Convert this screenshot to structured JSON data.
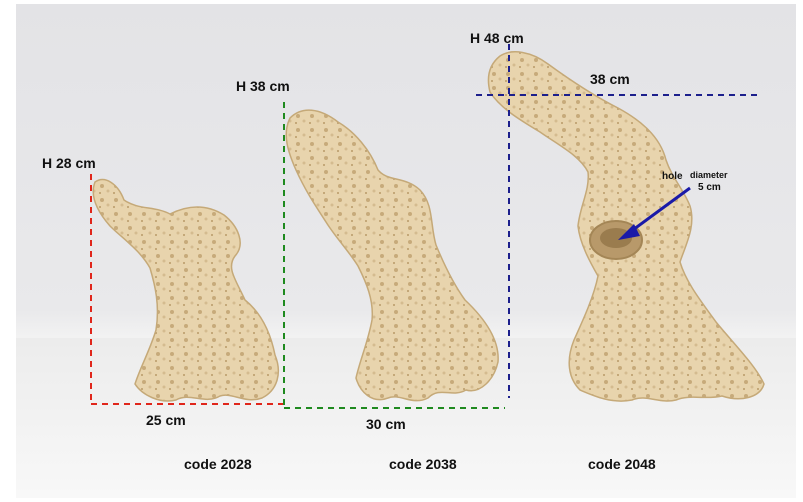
{
  "rocks": [
    {
      "height_label": "H 28 cm",
      "width_label": "25 cm",
      "code_label": "code 2028",
      "guide_color": "#e0261b"
    },
    {
      "height_label": "H 38 cm",
      "width_label": "30 cm",
      "code_label": "code 2038",
      "guide_color": "#1f8a1f"
    },
    {
      "height_label": "H 48 cm",
      "width_label": "38 cm",
      "code_label": "code 2048",
      "guide_color": "#1c1f8c"
    }
  ],
  "annotation": {
    "hole": "hole",
    "diameter": "diameter",
    "size": "5 cm",
    "arrow_color": "#1a1aa8"
  },
  "colors": {
    "rock_fill": "#e7d3ac",
    "rock_shadow": "#c9ae80",
    "background": "#e6e6e8"
  }
}
